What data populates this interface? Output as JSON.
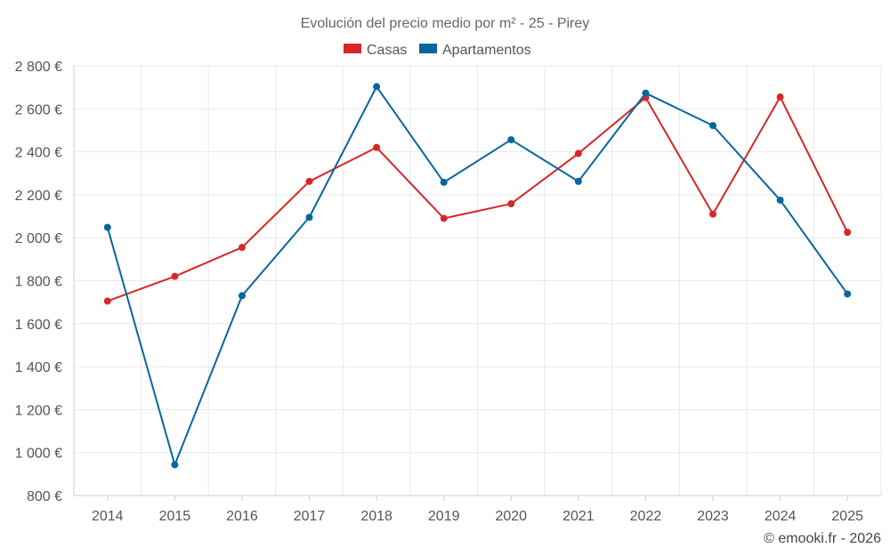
{
  "chart_data": {
    "type": "line",
    "title": "Evolución del precio medio por m² - 25 - Pirey",
    "categories": [
      "2014",
      "2015",
      "2016",
      "2017",
      "2018",
      "2019",
      "2020",
      "2021",
      "2022",
      "2023",
      "2024",
      "2025"
    ],
    "series": [
      {
        "name": "Casas",
        "color": "#d62728",
        "values": [
          1705,
          1820,
          1955,
          2262,
          2420,
          2090,
          2158,
          2392,
          2652,
          2110,
          2655,
          2025
        ]
      },
      {
        "name": "Apartamentos",
        "color": "#05679d",
        "values": [
          2048,
          943,
          1730,
          2095,
          2703,
          2258,
          2456,
          2262,
          2673,
          2522,
          2175,
          1738
        ]
      }
    ],
    "ylim": [
      800,
      2800
    ],
    "yticks": [
      800,
      1000,
      1200,
      1400,
      1600,
      1800,
      2000,
      2200,
      2400,
      2600,
      2800
    ],
    "ytick_labels": [
      "800 €",
      "1 000 €",
      "1 200 €",
      "1 400 €",
      "1 600 €",
      "1 800 €",
      "2 000 €",
      "2 200 €",
      "2 400 €",
      "2 600 €",
      "2 800 €"
    ],
    "xlabel": "",
    "ylabel": "",
    "grid": true,
    "legend_position": "top-center",
    "credit": "© emooki.fr - 2026"
  }
}
